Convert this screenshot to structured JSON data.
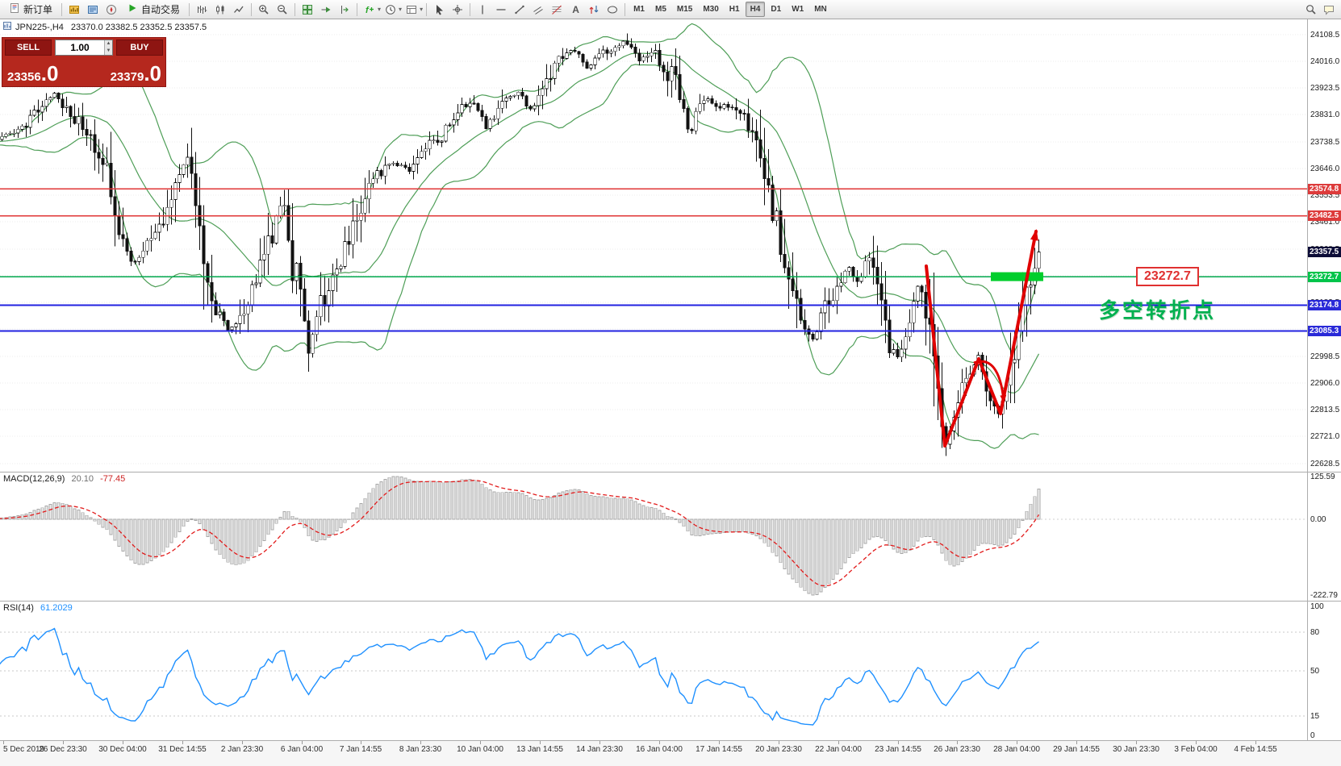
{
  "toolbar": {
    "new_order_label": "新订单",
    "auto_trading_label": "自动交易",
    "timeframes": [
      "M1",
      "M5",
      "M15",
      "M30",
      "H1",
      "H4",
      "D1",
      "W1",
      "MN"
    ],
    "active_timeframe": "H4",
    "icons": [
      "new-order-icon",
      "charts-grid-icon",
      "data-window-icon",
      "navigator-icon",
      "auto-trading-play-icon",
      "bar-chart-icon",
      "candlestick-chart-icon",
      "line-chart-icon",
      "zoom-in-icon",
      "zoom-out-icon",
      "tile-windows-icon",
      "auto-scroll-icon",
      "chart-shift-icon",
      "indicators-icon",
      "periods-icon",
      "templates-icon",
      "cursor-icon",
      "crosshair-icon",
      "vertical-line-icon",
      "horizontal-line-icon",
      "trendline-icon",
      "channel-icon",
      "fibonacci-icon",
      "text-label-icon",
      "arrows-icon",
      "shapes-icon",
      "search-icon",
      "chat-icon"
    ]
  },
  "chart": {
    "symbol_label": "JPN225-,H4",
    "ohlc_label": "23370.0 23382.5 23352.5 23357.5",
    "trade_panel": {
      "sell_label": "SELL",
      "buy_label": "BUY",
      "volume": "1.00",
      "sell_price_main": "23356",
      "sell_price_big": ".0",
      "buy_price_main": "23379",
      "buy_price_big": ".0"
    },
    "annotations": {
      "price_label": "23272.7",
      "cn_note": "多空转折点",
      "note_color": "#00B050"
    },
    "levels": [
      {
        "price": 23574.8,
        "label": "23574.8",
        "color": "#E03636",
        "width": 1.4,
        "tag_bg": "#DD3B3B"
      },
      {
        "price": 23482.5,
        "label": "23482.5",
        "color": "#E03636",
        "width": 1.4,
        "tag_bg": "#DD3B3B"
      },
      {
        "price": 23272.7,
        "label": "23272.7",
        "color": "#00A84D",
        "width": 1.4,
        "tag_bg": "#00C44A"
      },
      {
        "price": 23174.8,
        "label": "23174.8",
        "color": "#2222E0",
        "width": 2,
        "tag_bg": "#2A2AD8"
      },
      {
        "price": 23085.3,
        "label": "23085.3",
        "color": "#2222E0",
        "width": 2,
        "tag_bg": "#2A2AD8"
      }
    ],
    "current_price_tag": {
      "price": 23357.5,
      "label": "23357.5",
      "bg": "#0D0D38"
    },
    "price_scale": [
      "24108.5",
      "24016.0",
      "23923.5",
      "23831.0",
      "23738.5",
      "23646.0",
      "23553.5",
      "23461.0",
      "23368.5",
      "23276.0",
      "23183.5",
      "23091.0",
      "22998.5",
      "22906.0",
      "22813.5",
      "22721.0",
      "22628.5"
    ],
    "time_axis": [
      "5 Dec 2019",
      "26 Dec 23:30",
      "30 Dec 04:00",
      "31 Dec 14:55",
      "2 Jan 23:30",
      "6 Jan 04:00",
      "7 Jan 14:55",
      "8 Jan 23:30",
      "10 Jan 04:00",
      "13 Jan 14:55",
      "14 Jan 23:30",
      "16 Jan 04:00",
      "17 Jan 14:55",
      "20 Jan 23:30",
      "22 Jan 04:00",
      "23 Jan 14:55",
      "26 Jan 23:30",
      "28 Jan 04:00",
      "29 Jan 14:55",
      "30 Jan 23:30",
      "3 Feb 04:00",
      "4 Feb 14:55"
    ]
  },
  "chart_data": {
    "type": "candlestick",
    "symbol": "JPN225-",
    "period": "H4",
    "bars": 258,
    "price_range": [
      22600,
      24160
    ],
    "last_close": 23357.5,
    "price_path": [
      [
        0.0,
        23740
      ],
      [
        0.025,
        23800
      ],
      [
        0.05,
        23905
      ],
      [
        0.078,
        23795
      ],
      [
        0.101,
        23655
      ],
      [
        0.116,
        23430
      ],
      [
        0.129,
        23315
      ],
      [
        0.147,
        23400
      ],
      [
        0.167,
        23560
      ],
      [
        0.18,
        23690
      ],
      [
        0.192,
        23420
      ],
      [
        0.205,
        23170
      ],
      [
        0.221,
        23075
      ],
      [
        0.234,
        23160
      ],
      [
        0.25,
        23300
      ],
      [
        0.265,
        23460
      ],
      [
        0.273,
        23540
      ],
      [
        0.281,
        23310
      ],
      [
        0.29,
        23240
      ],
      [
        0.295,
        22985
      ],
      [
        0.304,
        23140
      ],
      [
        0.316,
        23240
      ],
      [
        0.332,
        23370
      ],
      [
        0.347,
        23510
      ],
      [
        0.363,
        23630
      ],
      [
        0.378,
        23670
      ],
      [
        0.394,
        23640
      ],
      [
        0.409,
        23720
      ],
      [
        0.425,
        23760
      ],
      [
        0.44,
        23855
      ],
      [
        0.456,
        23875
      ],
      [
        0.467,
        23790
      ],
      [
        0.482,
        23870
      ],
      [
        0.498,
        23915
      ],
      [
        0.509,
        23845
      ],
      [
        0.521,
        23910
      ],
      [
        0.536,
        24020
      ],
      [
        0.552,
        24055
      ],
      [
        0.564,
        23995
      ],
      [
        0.575,
        24030
      ],
      [
        0.591,
        24065
      ],
      [
        0.602,
        24090
      ],
      [
        0.614,
        24015
      ],
      [
        0.628,
        24055
      ],
      [
        0.64,
        23960
      ],
      [
        0.647,
        23990
      ],
      [
        0.655,
        23870
      ],
      [
        0.663,
        23760
      ],
      [
        0.674,
        23900
      ],
      [
        0.69,
        23850
      ],
      [
        0.702,
        23870
      ],
      [
        0.712,
        23830
      ],
      [
        0.726,
        23750
      ],
      [
        0.737,
        23600
      ],
      [
        0.748,
        23420
      ],
      [
        0.76,
        23280
      ],
      [
        0.77,
        23120
      ],
      [
        0.78,
        23060
      ],
      [
        0.79,
        23140
      ],
      [
        0.802,
        23230
      ],
      [
        0.815,
        23300
      ],
      [
        0.825,
        23260
      ],
      [
        0.835,
        23340
      ],
      [
        0.845,
        23180
      ],
      [
        0.853,
        23050
      ],
      [
        0.862,
        22980
      ],
      [
        0.872,
        23120
      ],
      [
        0.882,
        23230
      ],
      [
        0.889,
        23150
      ],
      [
        0.896,
        22990
      ],
      [
        0.902,
        22820
      ],
      [
        0.908,
        22680
      ],
      [
        0.916,
        22800
      ],
      [
        0.925,
        22900
      ],
      [
        0.934,
        22955
      ],
      [
        0.94,
        22990
      ],
      [
        0.948,
        22895
      ],
      [
        0.956,
        22830
      ],
      [
        0.961,
        22790
      ],
      [
        0.969,
        22905
      ],
      [
        0.977,
        23060
      ],
      [
        0.985,
        23200
      ],
      [
        0.993,
        23310
      ],
      [
        1.0,
        23357
      ]
    ],
    "key_points": {
      "v_low": [
        0.908,
        22665
      ],
      "top_high": [
        0.602,
        24112
      ],
      "spike_low": [
        0.295,
        22945
      ]
    },
    "bollinger": {
      "period": 20,
      "deviation": 1.7,
      "color": "#4E9E57"
    },
    "trend_arrow": [
      [
        0.89,
        23310
      ],
      [
        0.908,
        22690
      ],
      [
        0.94,
        22990
      ],
      [
        0.961,
        22800
      ],
      [
        0.995,
        23430
      ]
    ],
    "pullback_arc": {
      "from": [
        0.936,
        22975
      ],
      "ctrl": [
        0.96,
        23005
      ],
      "to": [
        0.964,
        22845
      ]
    },
    "highlight_box": {
      "x_from": 0.952,
      "x_to": 1.002,
      "price": 23272.7,
      "color": "#00CE2C"
    },
    "indicators": {
      "macd": [
        12,
        26,
        9
      ],
      "rsi": 14
    }
  },
  "macd": {
    "label": "MACD(12,26,9)",
    "value_main": "20.10",
    "value_signal": "-77.45",
    "scale": [
      "125.59",
      "0.00",
      "-222.79"
    ]
  },
  "rsi": {
    "label": "RSI(14)",
    "value": "61.2029",
    "scale": [
      "100",
      "80",
      "50",
      "15",
      "0"
    ],
    "levels": [
      80,
      50,
      15
    ]
  }
}
